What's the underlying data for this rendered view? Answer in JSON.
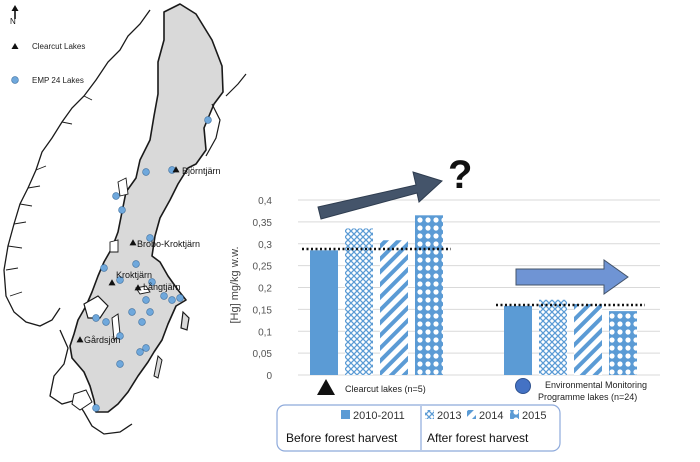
{
  "map": {
    "north_label": "N",
    "legend": [
      {
        "label": "Clearcut Lakes",
        "symbol": "triangle",
        "color": "#111111"
      },
      {
        "label": "EMP 24 Lakes",
        "symbol": "circle",
        "color": "#6fa8dc"
      }
    ],
    "lake_labels": [
      "Björntjärn",
      "Brobo-Kroktjärn",
      "Kroktjärn",
      "Långtjärn",
      "Gårdsjön"
    ],
    "land_color": "#d9d9d9"
  },
  "annotation": {
    "question_mark": "?"
  },
  "chart_data": {
    "type": "bar",
    "ylabel": "[Hg] mg/kg w.w.",
    "ylim": [
      0,
      0.4
    ],
    "yticks": [
      "0",
      "0,05",
      "0,1",
      "0,15",
      "0,2",
      "0,25",
      "0,3",
      "0,35",
      "0,4"
    ],
    "categories": [
      "Clearcut lakes (n=5)",
      "Environmental Monitoring Programme lakes (n=24)"
    ],
    "series": [
      {
        "name": "2010-2011",
        "values": [
          0.285,
          0.158
        ],
        "pattern": "solid"
      },
      {
        "name": "2013",
        "values": [
          0.335,
          0.172
        ],
        "pattern": "checker"
      },
      {
        "name": "2014",
        "values": [
          0.308,
          0.162
        ],
        "pattern": "diagonal"
      },
      {
        "name": "2015",
        "values": [
          0.365,
          0.146
        ],
        "pattern": "dots"
      }
    ],
    "baselines": [
      0.288,
      0.16
    ],
    "grid": true,
    "colors": {
      "bar": "#5b9bd5",
      "arrow_dark": "#44546a",
      "arrow_light": "#6f94d4",
      "grid": "#d9d9d9"
    }
  },
  "period_labels": [
    "Before forest harvest",
    "After forest harvest"
  ]
}
